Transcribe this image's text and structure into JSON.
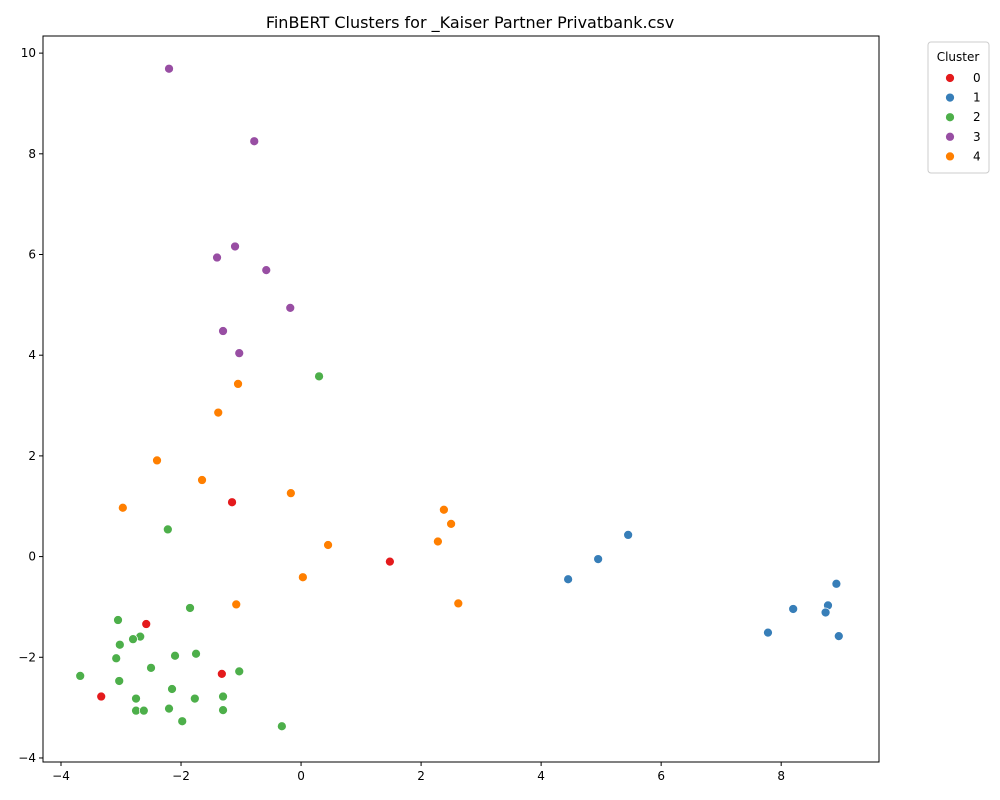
{
  "chart_data": {
    "type": "scatter",
    "title": "FinBERT Clusters for _Kaiser Partner Privatbank.csv",
    "xlabel": "",
    "ylabel": "",
    "xlim": [
      -4.3,
      9.63
    ],
    "ylim": [
      -4.08,
      10.34
    ],
    "xticks": [
      -4,
      -2,
      0,
      2,
      4,
      6,
      8
    ],
    "yticks": [
      -4,
      -2,
      0,
      2,
      4,
      6,
      8,
      10
    ],
    "grid": false,
    "legend": {
      "title": "Cluster",
      "placement": "outside-top-right",
      "entries": [
        {
          "label": "0",
          "color": "#e41a1c"
        },
        {
          "label": "1",
          "color": "#377eb8"
        },
        {
          "label": "2",
          "color": "#4daf4a"
        },
        {
          "label": "3",
          "color": "#984ea3"
        },
        {
          "label": "4",
          "color": "#ff7f00"
        }
      ]
    },
    "series": [
      {
        "name": "0",
        "color": "#e41a1c",
        "points": [
          [
            -1.15,
            1.08
          ],
          [
            1.48,
            -0.1
          ],
          [
            -2.58,
            -1.34
          ],
          [
            -1.32,
            -2.33
          ],
          [
            -3.33,
            -2.78
          ]
        ]
      },
      {
        "name": "1",
        "color": "#377eb8",
        "points": [
          [
            5.45,
            0.43
          ],
          [
            4.95,
            -0.05
          ],
          [
            4.45,
            -0.45
          ],
          [
            8.92,
            -0.54
          ],
          [
            8.78,
            -0.97
          ],
          [
            8.2,
            -1.04
          ],
          [
            8.74,
            -1.11
          ],
          [
            7.78,
            -1.51
          ],
          [
            8.96,
            -1.58
          ]
        ]
      },
      {
        "name": "2",
        "color": "#4daf4a",
        "points": [
          [
            0.3,
            3.58
          ],
          [
            -2.22,
            0.54
          ],
          [
            -1.85,
            -1.02
          ],
          [
            -3.05,
            -1.26
          ],
          [
            -2.68,
            -1.59
          ],
          [
            -2.8,
            -1.64
          ],
          [
            -3.02,
            -1.75
          ],
          [
            -1.75,
            -1.93
          ],
          [
            -2.1,
            -1.97
          ],
          [
            -3.08,
            -2.02
          ],
          [
            -2.5,
            -2.21
          ],
          [
            -1.03,
            -2.28
          ],
          [
            -3.68,
            -2.37
          ],
          [
            -3.03,
            -2.47
          ],
          [
            -2.15,
            -2.63
          ],
          [
            -1.3,
            -2.78
          ],
          [
            -2.75,
            -2.82
          ],
          [
            -1.77,
            -2.82
          ],
          [
            -2.2,
            -3.02
          ],
          [
            -2.75,
            -3.06
          ],
          [
            -2.62,
            -3.06
          ],
          [
            -1.3,
            -3.05
          ],
          [
            -1.98,
            -3.27
          ],
          [
            -0.32,
            -3.37
          ]
        ]
      },
      {
        "name": "3",
        "color": "#984ea3",
        "points": [
          [
            -2.2,
            9.69
          ],
          [
            -0.78,
            8.25
          ],
          [
            -1.1,
            6.16
          ],
          [
            -1.4,
            5.94
          ],
          [
            -0.58,
            5.69
          ],
          [
            -0.18,
            4.94
          ],
          [
            -1.3,
            4.48
          ],
          [
            -1.03,
            4.04
          ]
        ]
      },
      {
        "name": "4",
        "color": "#ff7f00",
        "points": [
          [
            -1.05,
            3.43
          ],
          [
            -1.38,
            2.86
          ],
          [
            -2.4,
            1.91
          ],
          [
            -1.65,
            1.52
          ],
          [
            -0.17,
            1.26
          ],
          [
            -2.97,
            0.97
          ],
          [
            2.38,
            0.93
          ],
          [
            2.5,
            0.65
          ],
          [
            0.45,
            0.23
          ],
          [
            2.28,
            0.3
          ],
          [
            0.03,
            -0.41
          ],
          [
            2.62,
            -0.93
          ],
          [
            -1.08,
            -0.95
          ]
        ]
      }
    ]
  }
}
